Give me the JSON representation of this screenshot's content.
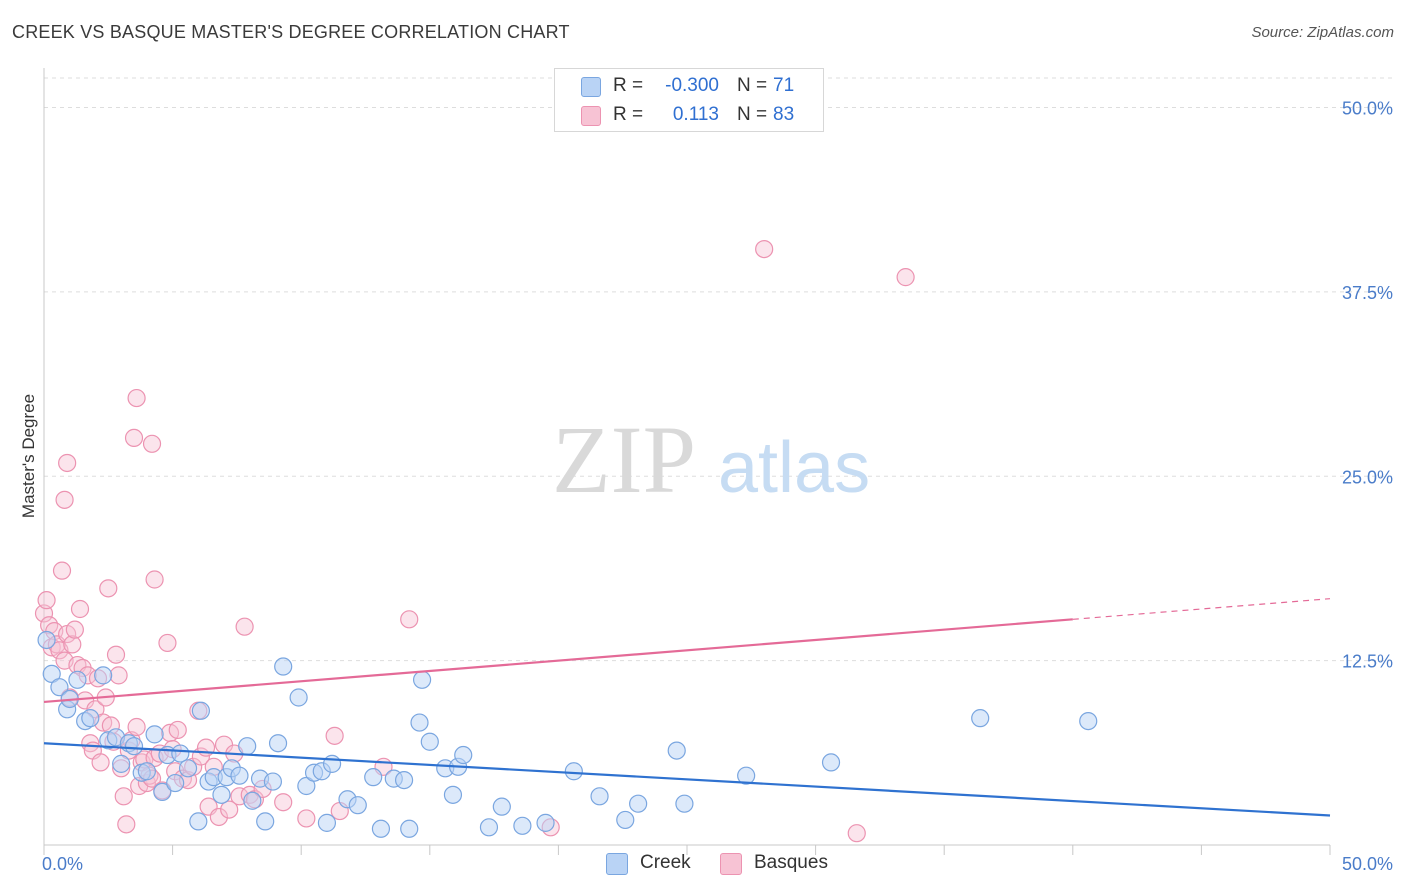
{
  "title": "CREEK VS BASQUE MASTER'S DEGREE CORRELATION CHART",
  "source": "Source: ZipAtlas.com",
  "watermark": {
    "zip": "ZIP",
    "atlas": "atlas"
  },
  "legend": {
    "rows": [
      {
        "r_label": "R =",
        "r_value": "-0.300",
        "n_label": "N =",
        "n_value": "71"
      },
      {
        "r_label": "R =",
        "r_value": "0.113",
        "n_label": "N =",
        "n_value": "83"
      }
    ]
  },
  "bottom_legend": [
    "Creek",
    "Basques"
  ],
  "colors": {
    "creek_fill": "#b9d3f5",
    "creek_stroke": "#7aa6e0",
    "creek_line": "#2f72d0",
    "basque_fill": "#f7c3d4",
    "basque_stroke": "#ec93b1",
    "basque_line": "#e46a97",
    "grid": "#dddddd",
    "tick_text": "#4a7cc9"
  },
  "chart_data": {
    "type": "scatter",
    "title": "CREEK VS BASQUE MASTER'S DEGREE CORRELATION CHART",
    "xlabel": "",
    "ylabel": "Master's Degree",
    "xlim": [
      0,
      50
    ],
    "ylim": [
      0,
      52
    ],
    "x_tick_labels": [
      "0.0%",
      "50.0%"
    ],
    "y_ticks": [
      12.5,
      25.0,
      37.5,
      50.0
    ],
    "y_tick_labels": [
      "12.5%",
      "25.0%",
      "37.5%",
      "50.0%"
    ],
    "grid": true,
    "legend_position": "top-center",
    "series": [
      {
        "name": "Creek",
        "r": -0.3,
        "n": 71,
        "trend": {
          "x": [
            0,
            50
          ],
          "y": [
            6.9,
            2.0
          ]
        },
        "points": [
          [
            0.3,
            11.6
          ],
          [
            0.6,
            10.7
          ],
          [
            0.9,
            9.2
          ],
          [
            1.0,
            9.9
          ],
          [
            1.3,
            11.2
          ],
          [
            1.6,
            8.4
          ],
          [
            1.8,
            8.6
          ],
          [
            2.3,
            11.5
          ],
          [
            2.5,
            7.1
          ],
          [
            2.8,
            7.3
          ],
          [
            3.0,
            5.5
          ],
          [
            3.3,
            6.9
          ],
          [
            3.5,
            6.7
          ],
          [
            3.8,
            4.9
          ],
          [
            4.0,
            5.0
          ],
          [
            4.3,
            7.5
          ],
          [
            4.6,
            3.6
          ],
          [
            4.8,
            6.1
          ],
          [
            5.1,
            4.2
          ],
          [
            5.3,
            6.2
          ],
          [
            5.6,
            5.2
          ],
          [
            6.0,
            1.6
          ],
          [
            6.1,
            9.1
          ],
          [
            6.4,
            4.3
          ],
          [
            6.6,
            4.6
          ],
          [
            6.9,
            3.4
          ],
          [
            7.1,
            4.6
          ],
          [
            7.3,
            5.2
          ],
          [
            7.6,
            4.7
          ],
          [
            7.9,
            6.7
          ],
          [
            8.1,
            3.0
          ],
          [
            8.4,
            4.5
          ],
          [
            8.6,
            1.6
          ],
          [
            8.9,
            4.3
          ],
          [
            9.1,
            6.9
          ],
          [
            9.3,
            12.1
          ],
          [
            9.9,
            10.0
          ],
          [
            10.2,
            4.0
          ],
          [
            10.5,
            4.9
          ],
          [
            10.8,
            5.0
          ],
          [
            11.0,
            1.5
          ],
          [
            11.2,
            5.5
          ],
          [
            11.8,
            3.1
          ],
          [
            12.2,
            2.7
          ],
          [
            12.8,
            4.6
          ],
          [
            13.1,
            1.1
          ],
          [
            13.6,
            4.5
          ],
          [
            14.0,
            4.4
          ],
          [
            14.2,
            1.1
          ],
          [
            14.6,
            8.3
          ],
          [
            14.7,
            11.2
          ],
          [
            15.0,
            7.0
          ],
          [
            15.6,
            5.2
          ],
          [
            15.9,
            3.4
          ],
          [
            16.1,
            5.3
          ],
          [
            16.3,
            6.1
          ],
          [
            17.3,
            1.2
          ],
          [
            17.8,
            2.6
          ],
          [
            18.6,
            1.3
          ],
          [
            19.5,
            1.5
          ],
          [
            20.6,
            5.0
          ],
          [
            21.6,
            3.3
          ],
          [
            22.6,
            1.7
          ],
          [
            23.1,
            2.8
          ],
          [
            24.6,
            6.4
          ],
          [
            24.9,
            2.8
          ],
          [
            27.3,
            4.7
          ],
          [
            30.6,
            5.6
          ],
          [
            36.4,
            8.6
          ],
          [
            40.6,
            8.4
          ],
          [
            0.1,
            13.9
          ]
        ]
      },
      {
        "name": "Basques",
        "r": 0.113,
        "n": 83,
        "trend": {
          "x": [
            0,
            40
          ],
          "y": [
            9.7,
            15.3
          ]
        },
        "trend_extension": {
          "x": [
            40,
            50
          ],
          "y": [
            15.3,
            16.7
          ]
        },
        "points": [
          [
            0.0,
            15.7
          ],
          [
            0.1,
            16.6
          ],
          [
            0.2,
            14.9
          ],
          [
            0.3,
            13.4
          ],
          [
            0.4,
            14.5
          ],
          [
            0.5,
            13.6
          ],
          [
            0.6,
            13.2
          ],
          [
            0.7,
            18.6
          ],
          [
            0.8,
            12.5
          ],
          [
            0.9,
            14.3
          ],
          [
            1.0,
            10.0
          ],
          [
            1.1,
            13.6
          ],
          [
            1.2,
            14.6
          ],
          [
            1.3,
            12.2
          ],
          [
            1.4,
            16.0
          ],
          [
            1.5,
            12.0
          ],
          [
            1.6,
            9.8
          ],
          [
            1.7,
            11.5
          ],
          [
            1.8,
            6.9
          ],
          [
            1.9,
            6.4
          ],
          [
            2.0,
            9.2
          ],
          [
            2.1,
            11.3
          ],
          [
            2.2,
            5.6
          ],
          [
            2.3,
            8.3
          ],
          [
            2.4,
            10.0
          ],
          [
            2.5,
            17.4
          ],
          [
            2.6,
            8.1
          ],
          [
            2.7,
            7.0
          ],
          [
            2.8,
            12.9
          ],
          [
            2.9,
            11.5
          ],
          [
            3.0,
            5.2
          ],
          [
            3.1,
            3.3
          ],
          [
            3.2,
            1.4
          ],
          [
            3.3,
            6.4
          ],
          [
            3.4,
            7.1
          ],
          [
            3.5,
            27.6
          ],
          [
            3.6,
            8.0
          ],
          [
            3.7,
            4.0
          ],
          [
            3.8,
            5.6
          ],
          [
            3.9,
            5.8
          ],
          [
            4.0,
            4.2
          ],
          [
            4.1,
            4.7
          ],
          [
            4.2,
            4.5
          ],
          [
            4.3,
            5.9
          ],
          [
            4.5,
            6.2
          ],
          [
            4.6,
            3.7
          ],
          [
            4.8,
            13.7
          ],
          [
            4.9,
            7.6
          ],
          [
            5.0,
            6.5
          ],
          [
            5.1,
            5.0
          ],
          [
            5.2,
            7.8
          ],
          [
            5.4,
            4.5
          ],
          [
            5.6,
            4.4
          ],
          [
            5.8,
            5.3
          ],
          [
            6.0,
            9.1
          ],
          [
            6.1,
            6.0
          ],
          [
            6.3,
            6.6
          ],
          [
            6.4,
            2.6
          ],
          [
            6.6,
            5.3
          ],
          [
            6.8,
            1.9
          ],
          [
            7.0,
            6.8
          ],
          [
            7.2,
            2.4
          ],
          [
            7.4,
            6.2
          ],
          [
            7.6,
            3.3
          ],
          [
            7.8,
            14.8
          ],
          [
            8.0,
            3.4
          ],
          [
            8.2,
            3.1
          ],
          [
            8.5,
            3.8
          ],
          [
            9.3,
            2.9
          ],
          [
            10.2,
            1.8
          ],
          [
            11.3,
            7.4
          ],
          [
            11.5,
            2.3
          ],
          [
            13.2,
            5.3
          ],
          [
            14.2,
            15.3
          ],
          [
            19.7,
            1.2
          ],
          [
            28.0,
            40.4
          ],
          [
            33.5,
            38.5
          ],
          [
            0.9,
            25.9
          ],
          [
            0.8,
            23.4
          ],
          [
            3.6,
            30.3
          ],
          [
            4.2,
            27.2
          ],
          [
            4.3,
            18.0
          ],
          [
            31.6,
            0.8
          ]
        ]
      }
    ]
  }
}
